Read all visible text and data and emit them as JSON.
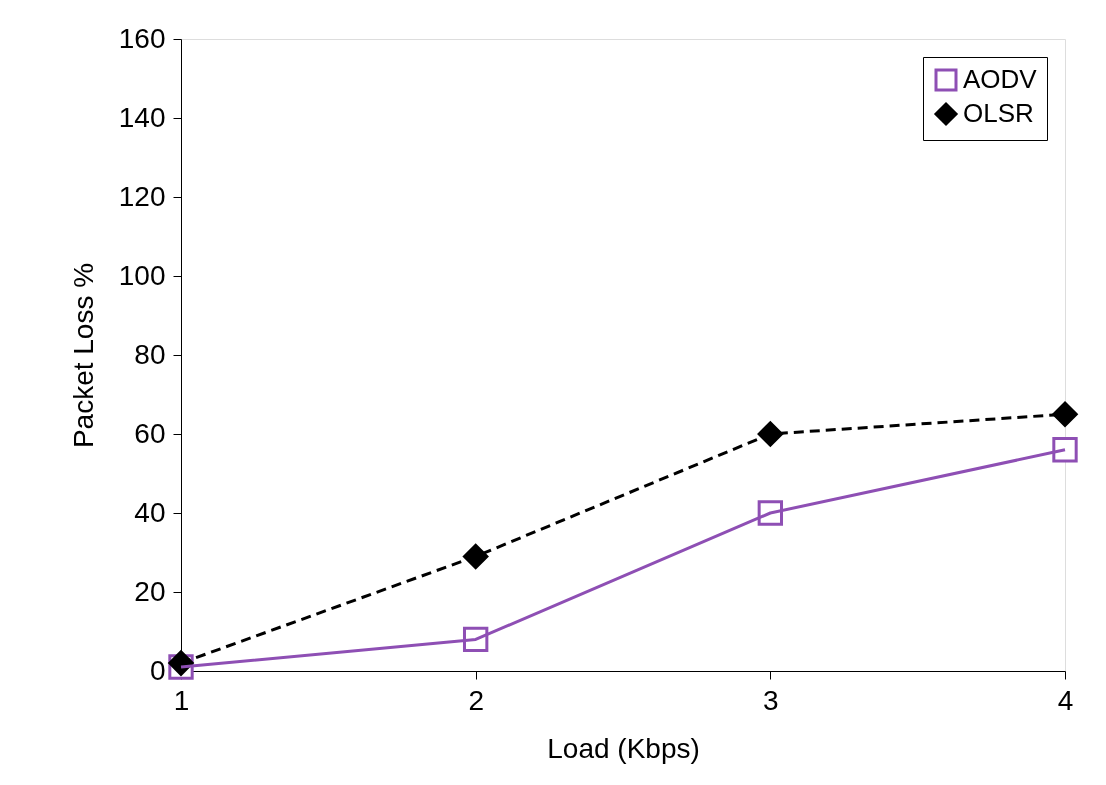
{
  "chart_data": {
    "type": "line",
    "xlabel": "Load (Kbps)",
    "ylabel": "Packet Loss %",
    "x": [
      1,
      2,
      3,
      4
    ],
    "xlim": [
      1,
      4
    ],
    "xticks": [
      1,
      2,
      3,
      4
    ],
    "ylim": [
      0,
      160
    ],
    "yticks": [
      0,
      20,
      40,
      60,
      80,
      100,
      120,
      140,
      160
    ],
    "grid": false,
    "legend": "top right",
    "series": [
      {
        "name": "AODV",
        "color": "#8e4fb4",
        "values": [
          1,
          8,
          40,
          56
        ],
        "marker": "square",
        "line_style": "solid"
      },
      {
        "name": "OLSR",
        "color": "#000000",
        "values": [
          2,
          29,
          60,
          65
        ],
        "marker": "diamond",
        "line_style": "dashed"
      }
    ]
  }
}
